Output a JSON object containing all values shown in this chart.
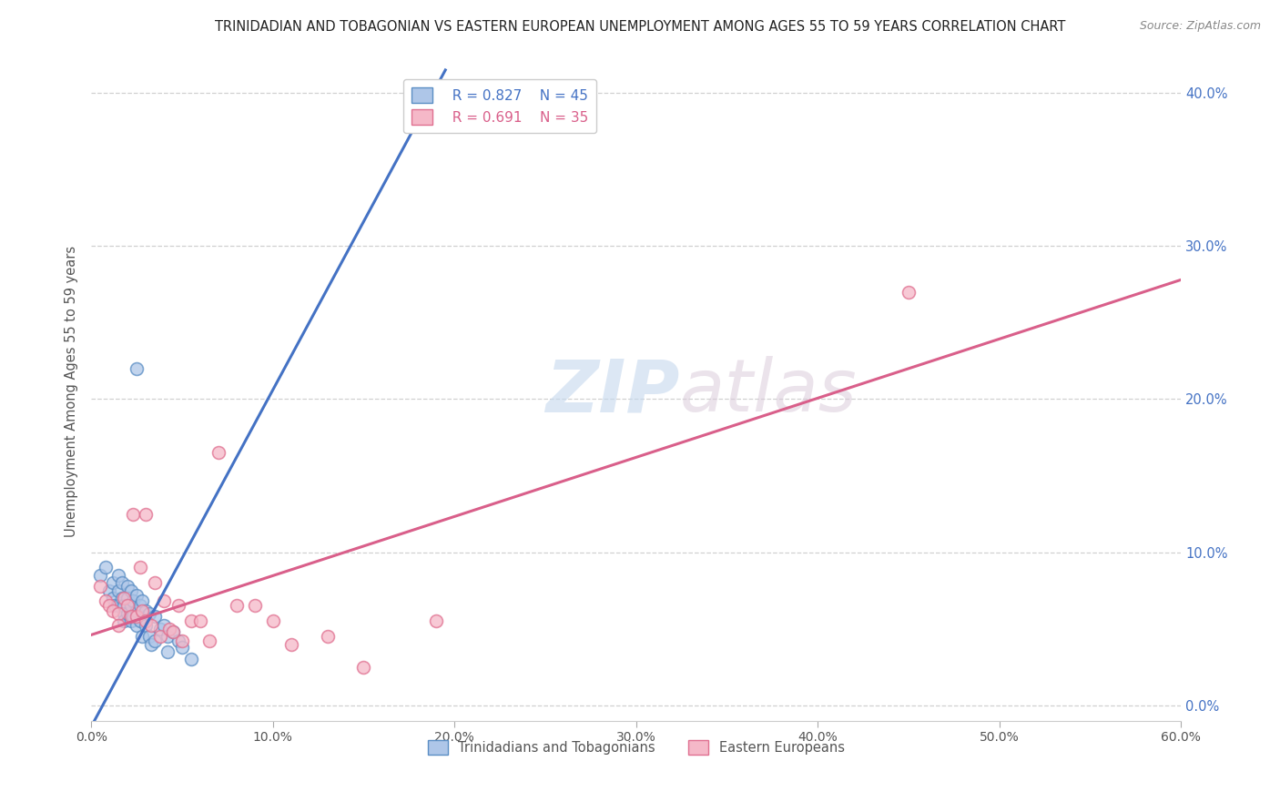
{
  "title": "TRINIDADIAN AND TOBAGONIAN VS EASTERN EUROPEAN UNEMPLOYMENT AMONG AGES 55 TO 59 YEARS CORRELATION CHART",
  "source": "Source: ZipAtlas.com",
  "ylabel": "Unemployment Among Ages 55 to 59 years",
  "xlim": [
    0.0,
    0.6
  ],
  "ylim": [
    -0.01,
    0.42
  ],
  "xticks": [
    0.0,
    0.1,
    0.2,
    0.3,
    0.4,
    0.5,
    0.6
  ],
  "xticklabels": [
    "0.0%",
    "10.0%",
    "20.0%",
    "30.0%",
    "40.0%",
    "50.0%",
    "60.0%"
  ],
  "yticks_right": [
    0.0,
    0.1,
    0.2,
    0.3,
    0.4
  ],
  "yticklabels_right": [
    "0.0%",
    "10.0%",
    "20.0%",
    "30.0%",
    "40.0%"
  ],
  "blue_fill": "#aec6e8",
  "blue_edge": "#5b8ec4",
  "pink_fill": "#f5b8c8",
  "pink_edge": "#e07090",
  "blue_line_color": "#4472c4",
  "pink_line_color": "#d95f8a",
  "legend_r1": "R = 0.827",
  "legend_n1": "N = 45",
  "legend_r2": "R = 0.691",
  "legend_n2": "N = 35",
  "legend_label1": "Trinidadians and Tobagonians",
  "legend_label2": "Eastern Europeans",
  "watermark_zip": "ZIP",
  "watermark_atlas": "atlas",
  "blue_scatter_x": [
    0.005,
    0.008,
    0.01,
    0.012,
    0.012,
    0.013,
    0.015,
    0.015,
    0.015,
    0.017,
    0.017,
    0.018,
    0.018,
    0.018,
    0.02,
    0.02,
    0.02,
    0.022,
    0.022,
    0.022,
    0.023,
    0.023,
    0.025,
    0.025,
    0.025,
    0.027,
    0.027,
    0.028,
    0.028,
    0.03,
    0.03,
    0.032,
    0.032,
    0.033,
    0.035,
    0.035,
    0.038,
    0.04,
    0.042,
    0.042,
    0.045,
    0.048,
    0.05,
    0.055,
    0.025
  ],
  "blue_scatter_y": [
    0.085,
    0.09,
    0.075,
    0.08,
    0.07,
    0.065,
    0.085,
    0.075,
    0.065,
    0.08,
    0.07,
    0.065,
    0.06,
    0.055,
    0.078,
    0.07,
    0.06,
    0.075,
    0.065,
    0.055,
    0.068,
    0.058,
    0.072,
    0.062,
    0.052,
    0.065,
    0.055,
    0.068,
    0.045,
    0.062,
    0.052,
    0.06,
    0.045,
    0.04,
    0.058,
    0.042,
    0.05,
    0.052,
    0.045,
    0.035,
    0.048,
    0.042,
    0.038,
    0.03,
    0.22
  ],
  "pink_scatter_x": [
    0.005,
    0.008,
    0.01,
    0.012,
    0.015,
    0.015,
    0.018,
    0.02,
    0.022,
    0.023,
    0.025,
    0.027,
    0.028,
    0.03,
    0.03,
    0.033,
    0.035,
    0.038,
    0.04,
    0.043,
    0.045,
    0.048,
    0.05,
    0.055,
    0.06,
    0.065,
    0.07,
    0.08,
    0.09,
    0.1,
    0.11,
    0.13,
    0.15,
    0.19,
    0.45
  ],
  "pink_scatter_y": [
    0.078,
    0.068,
    0.065,
    0.062,
    0.06,
    0.052,
    0.07,
    0.065,
    0.058,
    0.125,
    0.058,
    0.09,
    0.062,
    0.125,
    0.055,
    0.052,
    0.08,
    0.045,
    0.068,
    0.05,
    0.048,
    0.065,
    0.042,
    0.055,
    0.055,
    0.042,
    0.165,
    0.065,
    0.065,
    0.055,
    0.04,
    0.045,
    0.025,
    0.055,
    0.27
  ],
  "blue_line_x": [
    -0.005,
    0.195
  ],
  "blue_line_y": [
    -0.025,
    0.415
  ],
  "pink_line_x": [
    0.0,
    0.6
  ],
  "pink_line_y": [
    0.046,
    0.278
  ],
  "background_color": "#ffffff",
  "grid_color": "#d0d0d0",
  "title_color": "#222222",
  "title_fontsize": 10.5,
  "axis_label_color": "#555555",
  "right_tick_color": "#4472c4",
  "scatter_size": 100
}
